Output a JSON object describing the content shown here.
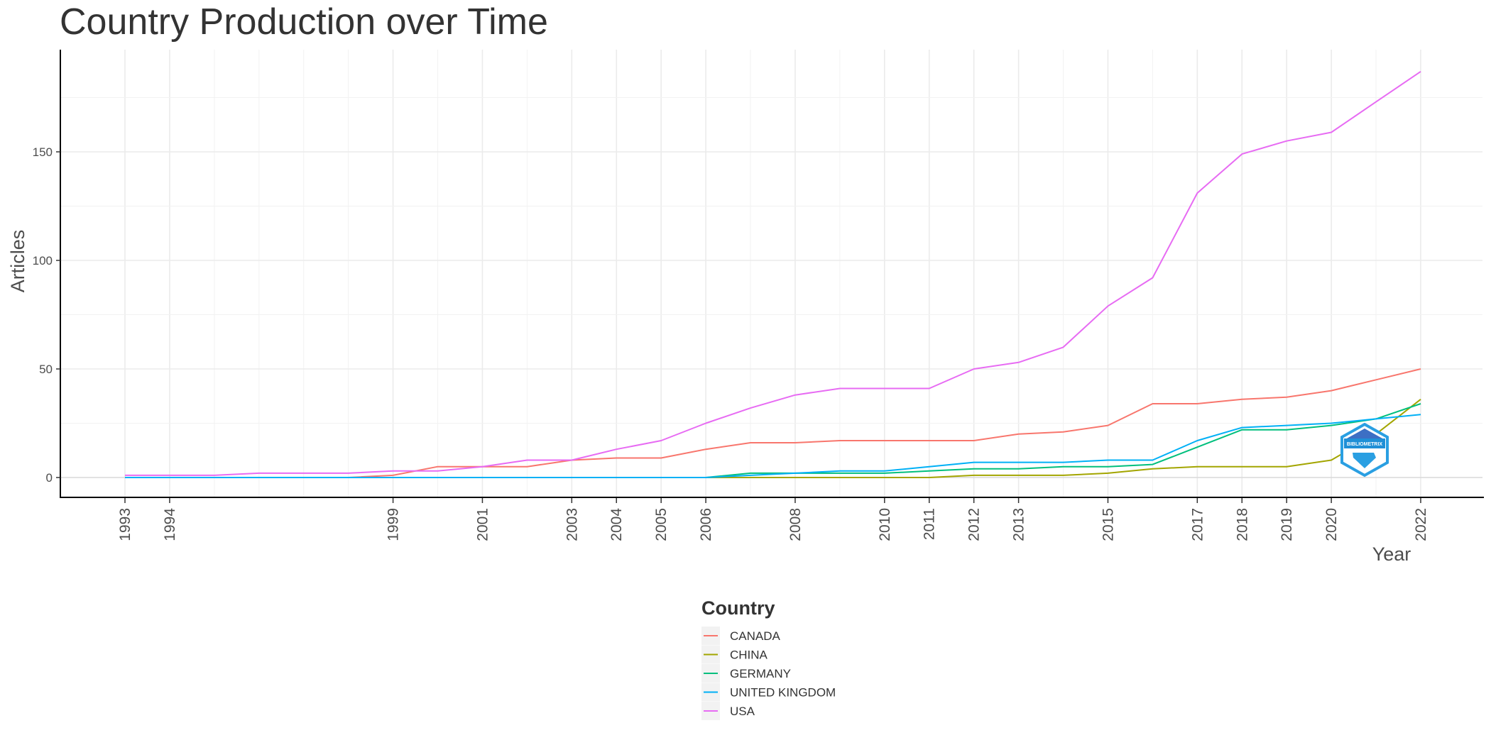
{
  "chart_data": {
    "type": "line",
    "title": "Country Production over Time",
    "xlabel": "Year",
    "ylabel": "Articles",
    "xlim": [
      1993,
      2022
    ],
    "ylim": [
      0,
      190
    ],
    "x_ticks": [
      1993,
      1994,
      1999,
      2001,
      2003,
      2004,
      2005,
      2006,
      2008,
      2010,
      2011,
      2012,
      2013,
      2015,
      2017,
      2018,
      2019,
      2020,
      2022
    ],
    "y_ticks": [
      0,
      50,
      100,
      150
    ],
    "grid": true,
    "legend": {
      "title": "Country",
      "position": "bottom"
    },
    "x": [
      1993,
      1994,
      1995,
      1996,
      1997,
      1998,
      1999,
      2000,
      2001,
      2002,
      2003,
      2004,
      2005,
      2006,
      2007,
      2008,
      2009,
      2010,
      2011,
      2012,
      2013,
      2014,
      2015,
      2016,
      2017,
      2018,
      2019,
      2020,
      2021,
      2022
    ],
    "series": [
      {
        "name": "CANADA",
        "color": "#F8766D",
        "values": [
          0,
          0,
          0,
          0,
          0,
          0,
          1,
          5,
          5,
          5,
          8,
          9,
          9,
          13,
          16,
          16,
          17,
          17,
          17,
          17,
          20,
          21,
          24,
          34,
          34,
          36,
          37,
          40,
          45,
          50
        ]
      },
      {
        "name": "CHINA",
        "color": "#A3A500",
        "values": [
          0,
          0,
          0,
          0,
          0,
          0,
          0,
          0,
          0,
          0,
          0,
          0,
          0,
          0,
          0,
          0,
          0,
          0,
          0,
          1,
          1,
          1,
          2,
          4,
          5,
          5,
          5,
          8,
          20,
          36
        ]
      },
      {
        "name": "GERMANY",
        "color": "#00BF7D",
        "values": [
          0,
          0,
          0,
          0,
          0,
          0,
          0,
          0,
          0,
          0,
          0,
          0,
          0,
          0,
          2,
          2,
          2,
          2,
          3,
          4,
          4,
          5,
          5,
          6,
          14,
          22,
          22,
          24,
          27,
          34
        ]
      },
      {
        "name": "UNITED KINGDOM",
        "color": "#00B0F6",
        "values": [
          0,
          0,
          0,
          0,
          0,
          0,
          0,
          0,
          0,
          0,
          0,
          0,
          0,
          0,
          1,
          2,
          3,
          3,
          5,
          7,
          7,
          7,
          8,
          8,
          17,
          23,
          24,
          25,
          27,
          29
        ]
      },
      {
        "name": "USA",
        "color": "#E76BF3",
        "values": [
          1,
          1,
          1,
          2,
          2,
          2,
          3,
          3,
          5,
          8,
          8,
          13,
          17,
          25,
          32,
          38,
          41,
          41,
          41,
          50,
          53,
          60,
          79,
          92,
          131,
          149,
          155,
          159,
          173,
          187
        ]
      }
    ]
  },
  "logo": {
    "text": "BIBLIOMETRIX",
    "color": "#2a9fe2"
  }
}
